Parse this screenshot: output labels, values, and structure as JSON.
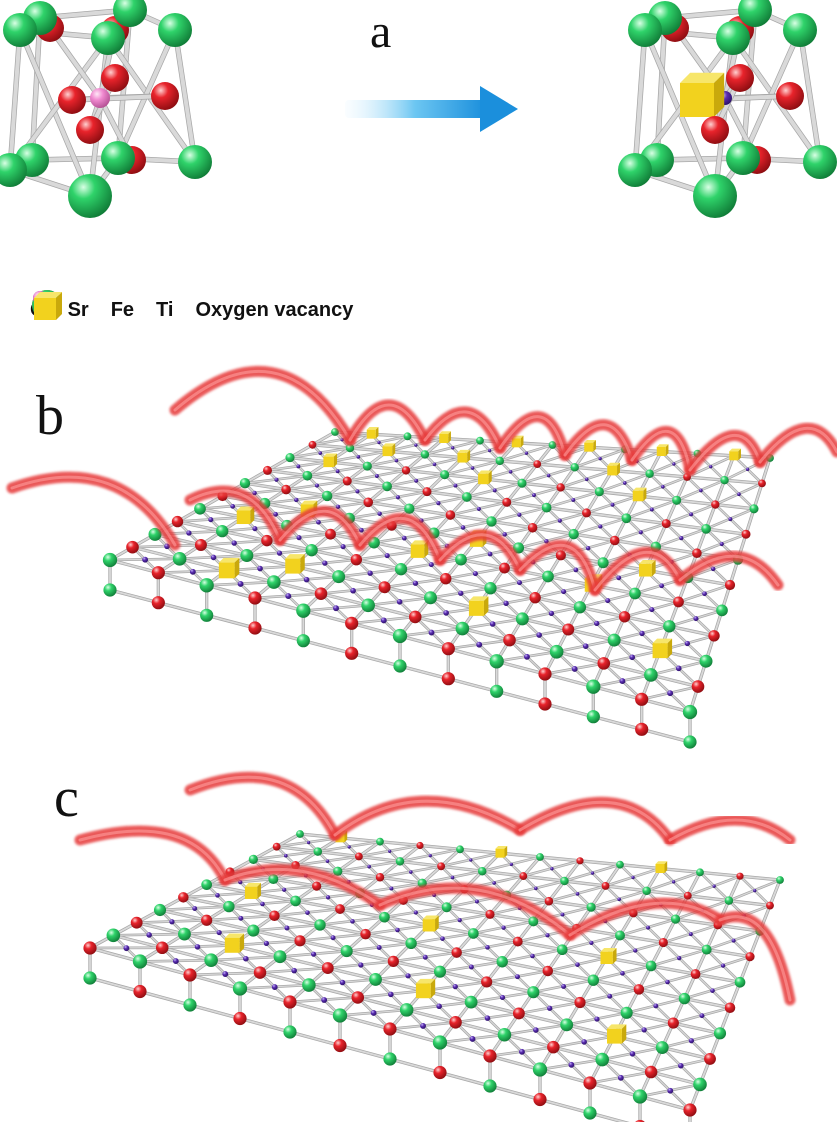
{
  "panels": {
    "a": "a",
    "b": "b",
    "c": "c"
  },
  "legend": [
    {
      "label": "O",
      "shape": "sphere",
      "color": "#e8232b"
    },
    {
      "label": "Sr",
      "shape": "sphere",
      "color": "#2fd36a"
    },
    {
      "label": "Fe",
      "shape": "small-sphere",
      "color": "#5a2db0"
    },
    {
      "label": "Ti",
      "shape": "small-sphere",
      "color": "#f08ad0"
    },
    {
      "label": "Oxygen vacancy",
      "shape": "cube",
      "color": "#f2d21e"
    }
  ],
  "colors": {
    "oxygen": "#e8232b",
    "strontium": "#2fd36a",
    "iron": "#5a2db0",
    "titanium": "#f08ad0",
    "vacancy": "#f2d21e",
    "bond": "#d9d9d9",
    "arrow": "#2ba3e6",
    "hop_path": "#e63b3b"
  }
}
